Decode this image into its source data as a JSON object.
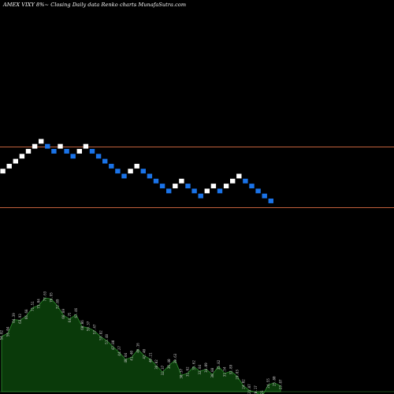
{
  "chart_data": {
    "type": "renko",
    "title": "AMEX  VIXY 8%~  Closing Daily data  Renko  charts MunafaSutra.com",
    "colors": {
      "background": "#000000",
      "up_brick": "#ffffff",
      "down_brick": "#1a73e8",
      "level_line": "#c0603c",
      "volume_fill": "#0a3a0a",
      "volume_outline": "#2f8f2f",
      "volume_text": "#c8c8c8"
    },
    "horizontal_levels": [
      "upper",
      "lower"
    ],
    "bricks": [
      "up",
      "up",
      "up",
      "up",
      "up",
      "up",
      "up",
      "down",
      "down",
      "up",
      "down",
      "down",
      "up",
      "up",
      "down",
      "down",
      "down",
      "down",
      "down",
      "down",
      "up",
      "up",
      "down",
      "down",
      "down",
      "down",
      "down",
      "up",
      "up",
      "down",
      "down",
      "down",
      "up",
      "up",
      "down",
      "up",
      "up",
      "up",
      "down",
      "down",
      "down",
      "down",
      "down"
    ],
    "volume_labels": [
      "54.02",
      "56.04",
      "64.39",
      "63.93",
      "66.68",
      "71.51",
      "73.04",
      "77.63",
      "76.95",
      "72.89",
      "66.89",
      "64.75",
      "67.46",
      "60.06",
      "59.37",
      "57.47",
      "53.82",
      "51.48",
      "47.80",
      "44.27",
      "40.04",
      "41.40",
      "46.16",
      "42.40",
      "40.21",
      "36.02",
      "32.37",
      "36.40",
      "39.63",
      "30.37",
      "31.62",
      "35.62",
      "32.84",
      "34.09",
      "30.88",
      "35.82",
      "31.54",
      "32.89",
      "29.83",
      "24.02",
      "21.07",
      "20.17",
      "17.21",
      "24.55",
      "25.80",
      "23.87"
    ]
  }
}
